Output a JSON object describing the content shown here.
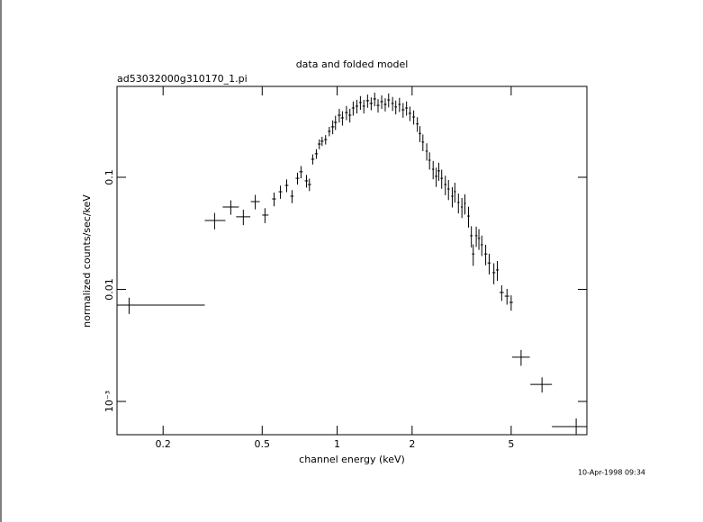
{
  "chart_data": {
    "type": "errorbar",
    "title": "data and folded model",
    "subtitle": "ad53032000g310170_1.pi",
    "xlabel": "channel energy (keV)",
    "ylabel": "normalized counts/sec/keV",
    "timestamp": "10-Apr-1998 09:34",
    "xscale": "log",
    "yscale": "log",
    "color": "#000000",
    "xlim": [
      0.1306,
      10.07
    ],
    "ylim": [
      0.000505,
      0.647
    ],
    "xticks": [
      0.2,
      0.5,
      1,
      2,
      5
    ],
    "yticks": [
      0.1,
      0.01,
      {
        "value": 0.001,
        "label": "10⁻³"
      }
    ],
    "x": [
      0.146,
      0.322,
      0.374,
      0.42,
      0.469,
      0.513,
      0.558,
      0.592,
      0.627,
      0.659,
      0.693,
      0.716,
      0.753,
      0.774,
      0.798,
      0.825,
      0.848,
      0.87,
      0.899,
      0.93,
      0.96,
      0.985,
      1.02,
      1.05,
      1.09,
      1.125,
      1.16,
      1.2,
      1.24,
      1.28,
      1.325,
      1.37,
      1.415,
      1.46,
      1.51,
      1.56,
      1.61,
      1.67,
      1.72,
      1.78,
      1.84,
      1.9,
      1.96,
      2.03,
      2.1,
      2.15,
      2.21,
      2.29,
      2.35,
      2.43,
      2.5,
      2.56,
      2.63,
      2.72,
      2.8,
      2.9,
      2.97,
      3.07,
      3.17,
      3.26,
      3.37,
      3.46,
      3.52,
      3.62,
      3.71,
      3.81,
      3.95,
      4.08,
      4.26,
      4.4,
      4.58,
      4.81,
      5.0,
      5.48,
      6.65,
      9.12
    ],
    "xerr": [
      [
        0.016,
        0.148
      ],
      [
        0.028,
        0.034
      ],
      [
        0.027,
        0.029
      ],
      [
        0.027,
        0.028
      ],
      [
        0.019,
        0.02
      ],
      [
        0.013,
        0.017
      ],
      [
        0.01,
        0.01
      ],
      [
        0.01,
        0.01
      ],
      [
        0.01,
        0.01
      ],
      [
        0.01,
        0.01
      ],
      [
        0.012,
        0.012
      ],
      [
        0.012,
        0.012
      ],
      [
        0.012,
        0.012
      ],
      [
        0.012,
        0.012
      ],
      [
        0.012,
        0.012
      ],
      [
        0.012,
        0.012
      ],
      [
        0.012,
        0.012
      ],
      [
        0.012,
        0.012
      ],
      [
        0.012,
        0.012
      ],
      [
        0.012,
        0.012
      ],
      [
        0.015,
        0.015
      ],
      [
        0.015,
        0.015
      ],
      [
        0.015,
        0.015
      ],
      [
        0.015,
        0.015
      ],
      [
        0.015,
        0.015
      ],
      [
        0.015,
        0.015
      ],
      [
        0.015,
        0.015
      ],
      [
        0.015,
        0.015
      ],
      [
        0.015,
        0.015
      ],
      [
        0.015,
        0.015
      ],
      [
        0.02,
        0.02
      ],
      [
        0.02,
        0.02
      ],
      [
        0.02,
        0.02
      ],
      [
        0.02,
        0.02
      ],
      [
        0.02,
        0.02
      ],
      [
        0.02,
        0.02
      ],
      [
        0.02,
        0.02
      ],
      [
        0.02,
        0.02
      ],
      [
        0.02,
        0.02
      ],
      [
        0.02,
        0.02
      ],
      [
        0.025,
        0.025
      ],
      [
        0.025,
        0.025
      ],
      [
        0.025,
        0.025
      ],
      [
        0.025,
        0.025
      ],
      [
        0.025,
        0.025
      ],
      [
        0.025,
        0.025
      ],
      [
        0.025,
        0.025
      ],
      [
        0.025,
        0.025
      ],
      [
        0.025,
        0.025
      ],
      [
        0.025,
        0.025
      ],
      [
        0.03,
        0.03
      ],
      [
        0.03,
        0.03
      ],
      [
        0.03,
        0.03
      ],
      [
        0.03,
        0.03
      ],
      [
        0.03,
        0.03
      ],
      [
        0.03,
        0.03
      ],
      [
        0.03,
        0.03
      ],
      [
        0.03,
        0.03
      ],
      [
        0.03,
        0.03
      ],
      [
        0.03,
        0.03
      ],
      [
        0.04,
        0.04
      ],
      [
        0.04,
        0.04
      ],
      [
        0.04,
        0.04
      ],
      [
        0.04,
        0.04
      ],
      [
        0.04,
        0.04
      ],
      [
        0.04,
        0.04
      ],
      [
        0.06,
        0.06
      ],
      [
        0.06,
        0.06
      ],
      [
        0.06,
        0.06
      ],
      [
        0.06,
        0.06
      ],
      [
        0.09,
        0.09
      ],
      [
        0.1,
        0.1
      ],
      [
        0.08,
        0.08
      ],
      [
        0.44,
        0.46
      ],
      [
        0.68,
        0.64
      ],
      [
        1.83,
        0.95
      ]
    ],
    "values": [
      0.00723,
      0.0412,
      0.0543,
      0.0444,
      0.0607,
      0.046,
      0.0641,
      0.0743,
      0.0847,
      0.0678,
      0.098,
      0.112,
      0.0929,
      0.0863,
      0.145,
      0.162,
      0.198,
      0.21,
      0.217,
      0.257,
      0.282,
      0.309,
      0.358,
      0.339,
      0.378,
      0.358,
      0.415,
      0.431,
      0.465,
      0.431,
      0.482,
      0.456,
      0.5,
      0.438,
      0.473,
      0.447,
      0.49,
      0.456,
      0.424,
      0.447,
      0.4,
      0.415,
      0.372,
      0.345,
      0.299,
      0.246,
      0.206,
      0.171,
      0.142,
      0.118,
      0.102,
      0.114,
      0.098,
      0.0862,
      0.0786,
      0.0678,
      0.0744,
      0.0596,
      0.0543,
      0.0585,
      0.0451,
      0.0301,
      0.0207,
      0.0301,
      0.0285,
      0.025,
      0.0207,
      0.0172,
      0.0141,
      0.0149,
      0.00938,
      0.0087,
      0.00765,
      0.00248,
      0.00142,
      0.000596
    ],
    "yerr": [
      0.0012,
      0.0069,
      0.008,
      0.007,
      0.009,
      0.007,
      0.009,
      0.01,
      0.011,
      0.009,
      0.012,
      0.014,
      0.012,
      0.011,
      0.015,
      0.016,
      0.02,
      0.02,
      0.021,
      0.025,
      0.04,
      0.045,
      0.05,
      0.05,
      0.055,
      0.05,
      0.06,
      0.06,
      0.065,
      0.06,
      0.065,
      0.06,
      0.07,
      0.06,
      0.065,
      0.06,
      0.07,
      0.065,
      0.06,
      0.065,
      0.06,
      0.06,
      0.055,
      0.05,
      0.045,
      0.04,
      0.035,
      0.03,
      0.025,
      0.022,
      0.02,
      0.021,
      0.019,
      0.017,
      0.016,
      0.014,
      0.015,
      0.012,
      0.011,
      0.012,
      0.0095,
      0.0065,
      0.0045,
      0.0062,
      0.006,
      0.0052,
      0.0043,
      0.0036,
      0.003,
      0.003,
      0.0015,
      0.0014,
      0.0012,
      0.0004,
      0.00022,
      0.00011
    ]
  }
}
